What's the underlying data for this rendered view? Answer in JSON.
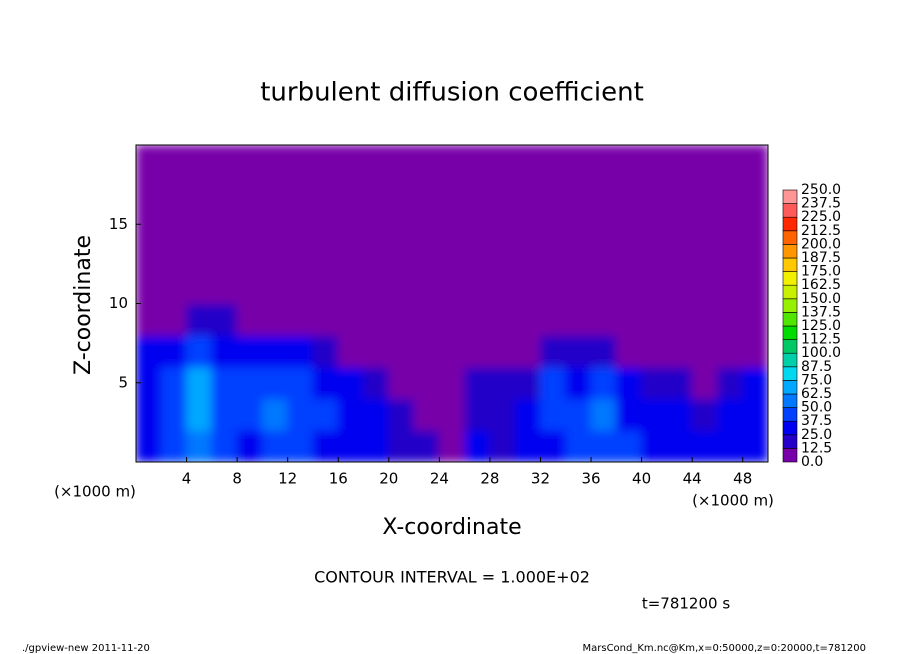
{
  "chart_data": {
    "type": "heatmap",
    "title": "turbulent diffusion coefficient",
    "xlabel": "X-coordinate",
    "ylabel": "Z-coordinate",
    "x_unit": "(×1000 m)",
    "xlim": [
      0,
      50
    ],
    "xticks": [
      4,
      8,
      12,
      16,
      20,
      24,
      28,
      32,
      36,
      40,
      44,
      48
    ],
    "ylim": [
      0,
      20
    ],
    "yticks": [
      5,
      10,
      15
    ],
    "xbins": [
      0,
      2,
      4,
      6,
      8,
      10,
      12,
      14,
      16,
      18,
      20,
      22,
      24,
      26,
      28,
      30,
      32,
      34,
      36,
      38,
      40,
      42,
      44,
      46,
      48,
      50
    ],
    "zbins": [
      0,
      2,
      4,
      6,
      8,
      10,
      12,
      14,
      16,
      18,
      20
    ],
    "values": [
      [
        30,
        45,
        60,
        40,
        35,
        45,
        40,
        35,
        30,
        25,
        20,
        15,
        10,
        25,
        20,
        30,
        35,
        40,
        45,
        40,
        35,
        30,
        30,
        35,
        30
      ],
      [
        35,
        40,
        70,
        45,
        40,
        50,
        45,
        40,
        35,
        25,
        20,
        5,
        5,
        15,
        20,
        30,
        45,
        40,
        50,
        35,
        30,
        25,
        20,
        25,
        25
      ],
      [
        35,
        40,
        65,
        40,
        45,
        45,
        40,
        35,
        25,
        15,
        5,
        5,
        5,
        15,
        15,
        20,
        40,
        35,
        40,
        25,
        20,
        15,
        10,
        15,
        25
      ],
      [
        25,
        30,
        40,
        35,
        30,
        30,
        25,
        15,
        5,
        0,
        0,
        0,
        0,
        0,
        0,
        5,
        15,
        15,
        15,
        5,
        5,
        0,
        0,
        5,
        10
      ],
      [
        0,
        0,
        15,
        20,
        10,
        0,
        0,
        0,
        0,
        0,
        0,
        0,
        0,
        0,
        0,
        0,
        0,
        0,
        0,
        0,
        0,
        0,
        0,
        0,
        0
      ],
      [
        0,
        0,
        0,
        0,
        0,
        0,
        0,
        0,
        0,
        0,
        0,
        0,
        0,
        0,
        0,
        0,
        0,
        0,
        0,
        0,
        0,
        0,
        0,
        0,
        0
      ],
      [
        0,
        0,
        0,
        0,
        0,
        0,
        0,
        0,
        0,
        0,
        0,
        0,
        0,
        0,
        0,
        0,
        0,
        0,
        0,
        0,
        0,
        0,
        0,
        0,
        0
      ],
      [
        0,
        0,
        0,
        0,
        0,
        0,
        0,
        0,
        0,
        0,
        0,
        0,
        0,
        0,
        0,
        0,
        0,
        0,
        0,
        0,
        0,
        0,
        0,
        0,
        0
      ],
      [
        0,
        0,
        0,
        0,
        0,
        0,
        0,
        0,
        0,
        0,
        0,
        0,
        0,
        0,
        0,
        0,
        0,
        0,
        0,
        0,
        0,
        0,
        0,
        0,
        0
      ],
      [
        0,
        0,
        0,
        0,
        0,
        0,
        0,
        0,
        0,
        0,
        0,
        0,
        0,
        0,
        0,
        0,
        0,
        0,
        0,
        0,
        0,
        0,
        0,
        0,
        0
      ]
    ],
    "colorbar": {
      "levels": [
        {
          "value": 0,
          "label": "0.0"
        },
        12.5,
        {
          "value": 25,
          "label": "25.0"
        },
        37.5,
        {
          "value": 50,
          "label": "50.0"
        },
        62.5,
        {
          "value": 75,
          "label": "75.0"
        },
        87.5,
        {
          "value": 100,
          "label": "100.0"
        },
        112.5,
        {
          "value": 125,
          "label": "125.0"
        },
        137.5,
        {
          "value": 150,
          "label": "150.0"
        },
        162.5,
        {
          "value": 175,
          "label": "175.0"
        },
        187.5,
        {
          "value": 200,
          "label": "200.0"
        },
        212.5,
        {
          "value": 225,
          "label": "225.0"
        },
        237.5,
        {
          "value": 250,
          "label": "250.0"
        }
      ],
      "colors": [
        "#7800a8",
        "#2400c8",
        "#0000f0",
        "#0040ff",
        "#0078ff",
        "#00a8ff",
        "#00d8f0",
        "#00d0a8",
        "#00c864",
        "#00dc00",
        "#50e600",
        "#96f000",
        "#c8f000",
        "#f0f000",
        "#ffc800",
        "#ff9600",
        "#ff6400",
        "#ff2800",
        "#ff5a5a",
        "#ff9696"
      ]
    },
    "contour_interval": "CONTOUR INTERVAL = 1.000E+02",
    "time_label": "t=781200 s",
    "footer_left": "./gpview-new  2011-11-20",
    "footer_right": "MarsCond_Km.nc@Km,x=0:50000,z=0:20000,t=781200"
  }
}
